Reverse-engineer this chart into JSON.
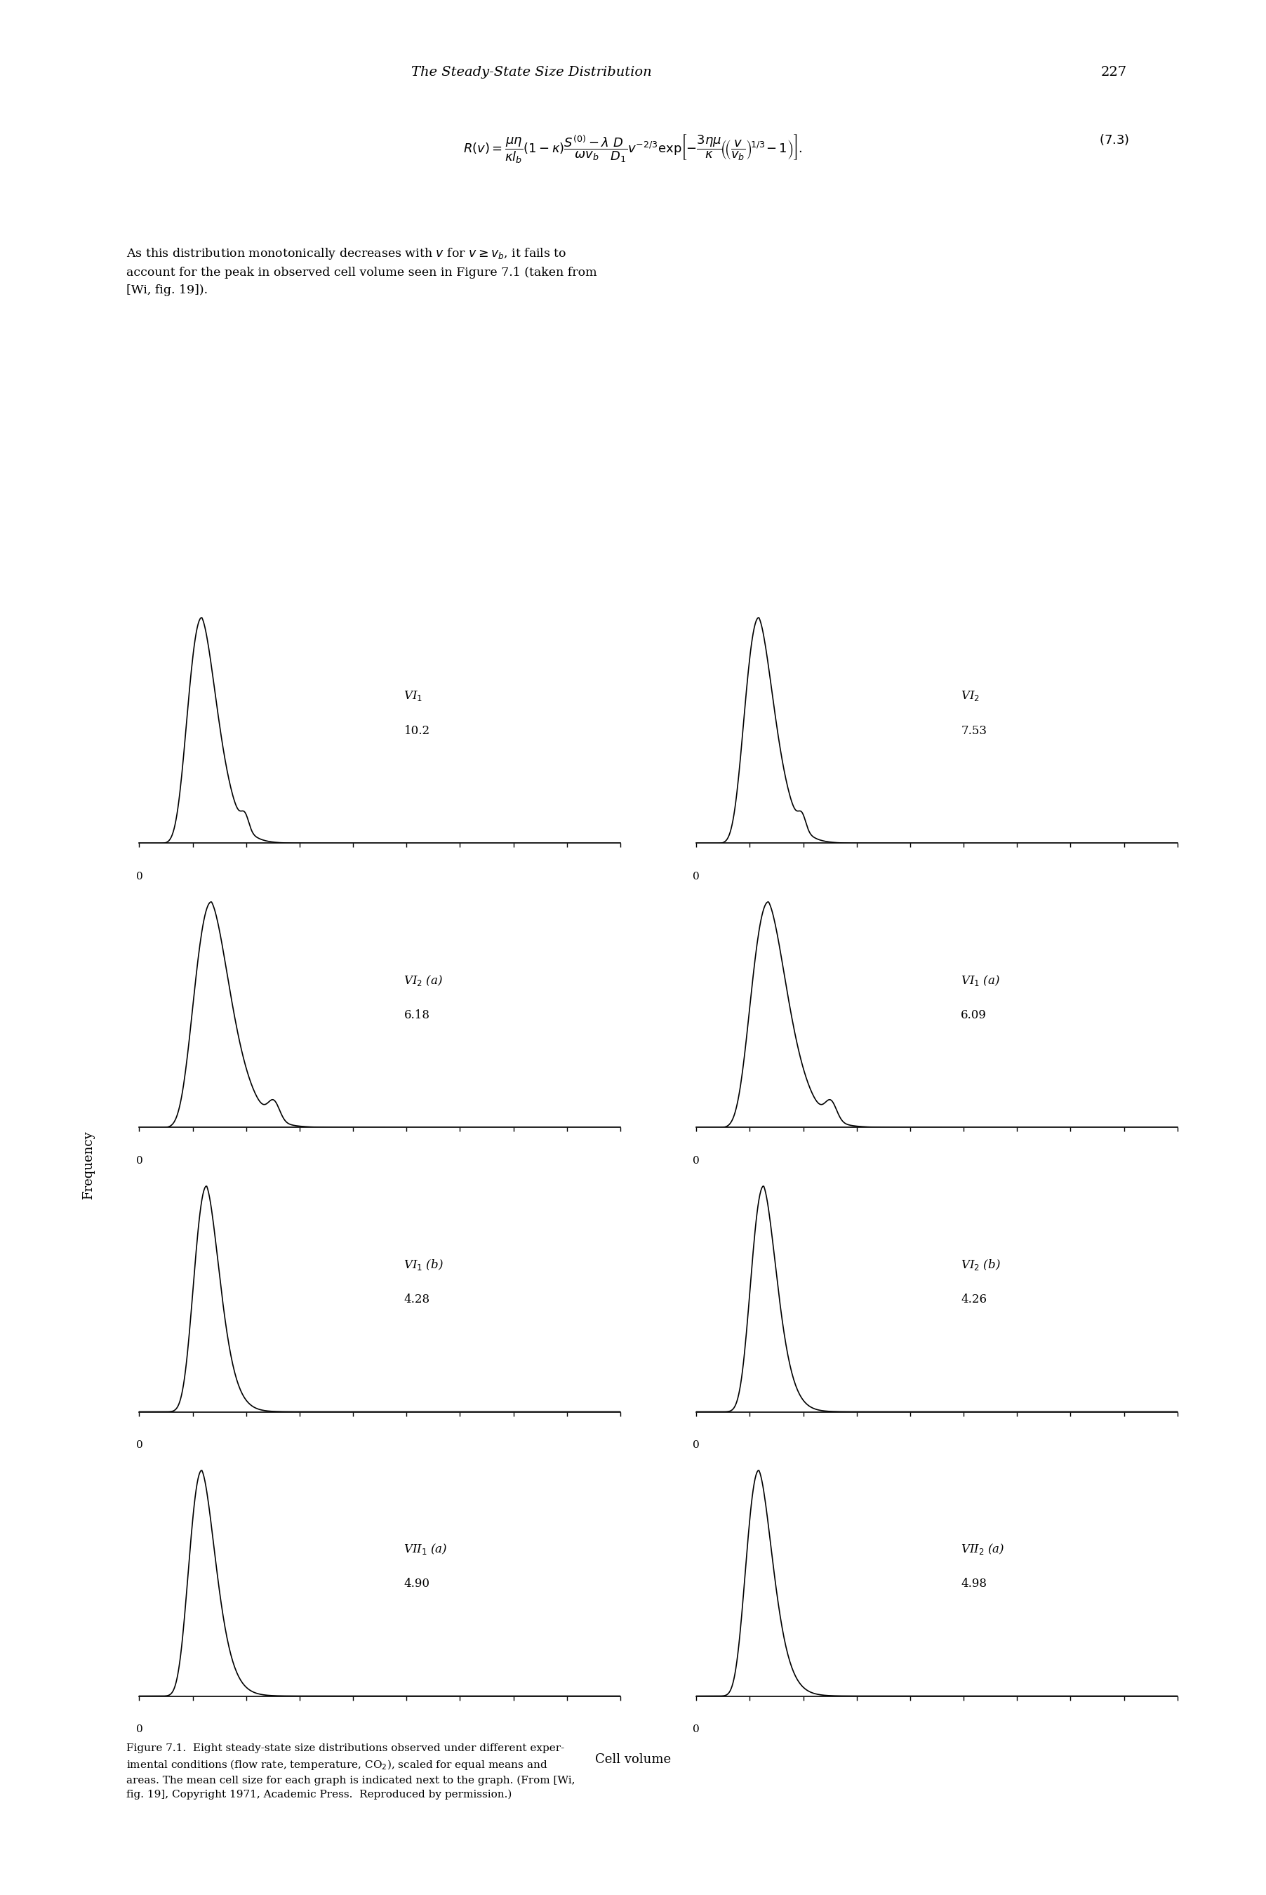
{
  "page_header": "The Steady-State Size Distribution",
  "page_number": "227",
  "equation_latex": "$R(v) = \\dfrac{\\mu\\eta}{\\kappa l_b}(1-\\kappa)\\dfrac{S^{(0)}-\\lambda}{\\omega v_b}\\dfrac{D}{D_1}v^{-2/3}\\exp\\!\\left[-\\dfrac{3\\eta\\mu}{\\kappa}\\!\\left(\\!\\left(\\dfrac{v}{v_b}\\right)^{\\!1/3}\\!-1\\right)\\right].$",
  "equation_number": "(7.3)",
  "body_text": "As this distribution monotonically decreases with $v$ for $v \\geq v_b$, it fails to\naccount for the peak in observed cell volume seen in Figure 7.1 (taken from\n[Wi, fig. 19]).",
  "ylabel": "Frequency",
  "xlabel": "Cell volume",
  "caption": "Figure 7.1.  Eight steady-state size distributions observed under different experimental conditions (flow rate, temperature, CO$_2$), scaled for equal means and\nareas. The mean cell size for each graph is indicated next to the graph. (From [Wi,\nfig. 19], Copyright 1971, Academic Press.  Reproduced by permission.)",
  "plots": [
    {
      "label": "VI$_1$",
      "mean": "10.2",
      "row": 0,
      "col": 0,
      "shape": "sharp_tall"
    },
    {
      "label": "VI$_2$",
      "mean": "7.53",
      "row": 0,
      "col": 1,
      "shape": "sharp_tall"
    },
    {
      "label": "VI$_2$ (a)",
      "mean": "6.18",
      "row": 1,
      "col": 0,
      "shape": "sharp_medium"
    },
    {
      "label": "VI$_1$ (a)",
      "mean": "6.09",
      "row": 1,
      "col": 1,
      "shape": "sharp_medium"
    },
    {
      "label": "VI$_1$ (b)",
      "mean": "4.28",
      "row": 2,
      "col": 0,
      "shape": "narrow_sharp"
    },
    {
      "label": "VI$_2$ (b)",
      "mean": "4.26",
      "row": 2,
      "col": 1,
      "shape": "narrow_sharp"
    },
    {
      "label": "VII$_1$ (a)",
      "mean": "4.90",
      "row": 3,
      "col": 0,
      "shape": "medium_sharp"
    },
    {
      "label": "VII$_2$ (a)",
      "mean": "4.98",
      "row": 3,
      "col": 1,
      "shape": "medium_sharp"
    }
  ],
  "background_color": "#ffffff",
  "line_color": "#000000"
}
